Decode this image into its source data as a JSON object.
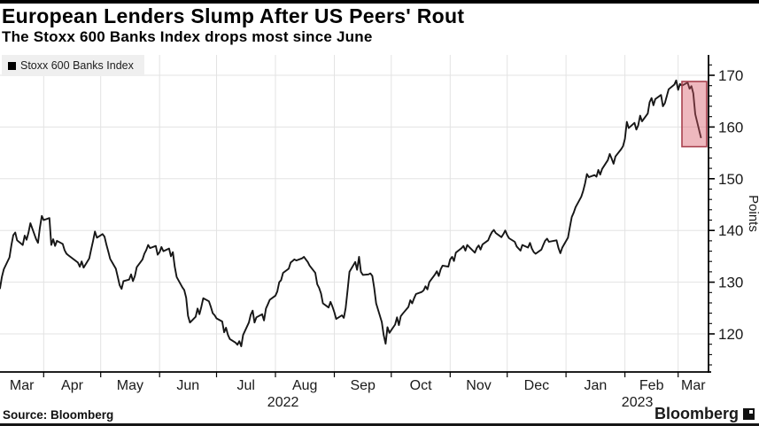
{
  "page": {
    "title": "European Lenders Slump After US Peers' Rout",
    "subtitle": "The Stoxx 600 Banks Index drops most since June",
    "source": "Source: Bloomberg",
    "brand": "Bloomberg",
    "legend": {
      "label": "Stoxx 600 Banks Index",
      "swatch_color": "#000000"
    }
  },
  "chart_data": {
    "type": "line",
    "title": "European Lenders Slump After US Peers' Rout",
    "subtitle": "The Stoxx 600 Banks Index drops most since June",
    "series_name": "Stoxx 600 Banks Index",
    "ylabel": "Points",
    "y_ticks": [
      120,
      130,
      140,
      150,
      160,
      170
    ],
    "y_minor_tick_step": 2,
    "y_minor_range": [
      114,
      172
    ],
    "ylim": [
      112.5,
      174
    ],
    "x_domain": [
      "2022-03-09",
      "2023-03-17"
    ],
    "x_month_labels": [
      "Mar",
      "Apr",
      "May",
      "Jun",
      "Jul",
      "Aug",
      "Sep",
      "Oct",
      "Nov",
      "Dec",
      "Jan",
      "Feb",
      "Mar"
    ],
    "year_labels": [
      "2022",
      "2023"
    ],
    "grid": true,
    "grid_color": "#e3e3e3",
    "axis_color": "#000000",
    "tick_label_color": "#1a1a1a",
    "line_color": "#161616",
    "legend_position": "top-left",
    "highlight_box": {
      "x": [
        "2023-03-03",
        "2023-03-16"
      ],
      "y": [
        156.2,
        168.8
      ],
      "fill": "#d65564",
      "fill_opacity": 0.42,
      "stroke": "#a8414e"
    },
    "points": [
      [
        "2022-03-09",
        128.8
      ],
      [
        "2022-03-10",
        131.0
      ],
      [
        "2022-03-11",
        132.5
      ],
      [
        "2022-03-14",
        134.8
      ],
      [
        "2022-03-15",
        137.2
      ],
      [
        "2022-03-16",
        139.1
      ],
      [
        "2022-03-17",
        139.6
      ],
      [
        "2022-03-18",
        138.1
      ],
      [
        "2022-03-21",
        137.2
      ],
      [
        "2022-03-22",
        139.0
      ],
      [
        "2022-03-23",
        138.2
      ],
      [
        "2022-03-24",
        139.6
      ],
      [
        "2022-03-25",
        141.4
      ],
      [
        "2022-03-28",
        138.3
      ],
      [
        "2022-03-29",
        137.6
      ],
      [
        "2022-03-30",
        140.5
      ],
      [
        "2022-03-31",
        142.8
      ],
      [
        "2022-04-01",
        142.0
      ],
      [
        "2022-04-04",
        142.4
      ],
      [
        "2022-04-05",
        137.2
      ],
      [
        "2022-04-06",
        138.3
      ],
      [
        "2022-04-07",
        137.0
      ],
      [
        "2022-04-08",
        138.0
      ],
      [
        "2022-04-11",
        137.4
      ],
      [
        "2022-04-12",
        136.2
      ],
      [
        "2022-04-13",
        135.5
      ],
      [
        "2022-04-14",
        135.2
      ],
      [
        "2022-04-19",
        133.8
      ],
      [
        "2022-04-20",
        133.0
      ],
      [
        "2022-04-21",
        134.0
      ],
      [
        "2022-04-22",
        132.8
      ],
      [
        "2022-04-25",
        134.6
      ],
      [
        "2022-04-26",
        136.3
      ],
      [
        "2022-04-27",
        138.0
      ],
      [
        "2022-04-28",
        139.8
      ],
      [
        "2022-04-29",
        138.6
      ],
      [
        "2022-05-02",
        139.3
      ],
      [
        "2022-05-03",
        138.8
      ],
      [
        "2022-05-04",
        137.3
      ],
      [
        "2022-05-05",
        135.9
      ],
      [
        "2022-05-06",
        134.5
      ],
      [
        "2022-05-09",
        132.6
      ],
      [
        "2022-05-10",
        131.0
      ],
      [
        "2022-05-11",
        129.4
      ],
      [
        "2022-05-12",
        128.7
      ],
      [
        "2022-05-13",
        130.2
      ],
      [
        "2022-05-16",
        130.5
      ],
      [
        "2022-05-17",
        131.5
      ],
      [
        "2022-05-18",
        130.2
      ],
      [
        "2022-05-19",
        131.2
      ],
      [
        "2022-05-20",
        132.9
      ],
      [
        "2022-05-23",
        134.4
      ],
      [
        "2022-05-24",
        135.5
      ],
      [
        "2022-05-25",
        136.2
      ],
      [
        "2022-05-26",
        137.2
      ],
      [
        "2022-05-27",
        136.6
      ],
      [
        "2022-05-30",
        137.0
      ],
      [
        "2022-05-31",
        135.3
      ],
      [
        "2022-06-01",
        135.8
      ],
      [
        "2022-06-02",
        136.8
      ],
      [
        "2022-06-03",
        136.0
      ],
      [
        "2022-06-06",
        136.5
      ],
      [
        "2022-06-07",
        135.0
      ],
      [
        "2022-06-08",
        135.8
      ],
      [
        "2022-06-09",
        133.0
      ],
      [
        "2022-06-10",
        131.0
      ],
      [
        "2022-06-13",
        129.0
      ],
      [
        "2022-06-14",
        128.5
      ],
      [
        "2022-06-15",
        127.0
      ],
      [
        "2022-06-16",
        123.5
      ],
      [
        "2022-06-17",
        122.2
      ],
      [
        "2022-06-20",
        123.3
      ],
      [
        "2022-06-21",
        124.9
      ],
      [
        "2022-06-22",
        123.8
      ],
      [
        "2022-06-23",
        125.2
      ],
      [
        "2022-06-24",
        126.9
      ],
      [
        "2022-06-27",
        126.3
      ],
      [
        "2022-06-28",
        125.2
      ],
      [
        "2022-06-29",
        124.0
      ],
      [
        "2022-06-30",
        123.6
      ],
      [
        "2022-07-01",
        123.0
      ],
      [
        "2022-07-04",
        122.4
      ],
      [
        "2022-07-05",
        120.3
      ],
      [
        "2022-07-06",
        121.2
      ],
      [
        "2022-07-07",
        119.8
      ],
      [
        "2022-07-08",
        119.0
      ],
      [
        "2022-07-11",
        118.3
      ],
      [
        "2022-07-12",
        117.9
      ],
      [
        "2022-07-13",
        118.6
      ],
      [
        "2022-07-14",
        117.6
      ],
      [
        "2022-07-15",
        119.8
      ],
      [
        "2022-07-18",
        122.2
      ],
      [
        "2022-07-19",
        123.7
      ],
      [
        "2022-07-20",
        124.5
      ],
      [
        "2022-07-21",
        122.2
      ],
      [
        "2022-07-22",
        123.2
      ],
      [
        "2022-07-25",
        123.8
      ],
      [
        "2022-07-26",
        122.6
      ],
      [
        "2022-07-27",
        124.9
      ],
      [
        "2022-07-28",
        125.7
      ],
      [
        "2022-07-29",
        126.6
      ],
      [
        "2022-08-01",
        127.4
      ],
      [
        "2022-08-02",
        128.2
      ],
      [
        "2022-08-03",
        130.0
      ],
      [
        "2022-08-04",
        130.4
      ],
      [
        "2022-08-05",
        131.8
      ],
      [
        "2022-08-08",
        132.6
      ],
      [
        "2022-08-09",
        133.8
      ],
      [
        "2022-08-10",
        134.1
      ],
      [
        "2022-08-11",
        134.4
      ],
      [
        "2022-08-12",
        134.2
      ],
      [
        "2022-08-15",
        134.6
      ],
      [
        "2022-08-16",
        134.9
      ],
      [
        "2022-08-17",
        134.4
      ],
      [
        "2022-08-18",
        133.9
      ],
      [
        "2022-08-19",
        133.2
      ],
      [
        "2022-08-22",
        131.8
      ],
      [
        "2022-08-23",
        129.6
      ],
      [
        "2022-08-24",
        128.9
      ],
      [
        "2022-08-25",
        127.8
      ],
      [
        "2022-08-26",
        125.9
      ],
      [
        "2022-08-29",
        125.1
      ],
      [
        "2022-08-30",
        126.2
      ],
      [
        "2022-08-31",
        125.3
      ],
      [
        "2022-09-01",
        124.2
      ],
      [
        "2022-09-02",
        122.9
      ],
      [
        "2022-09-05",
        123.6
      ],
      [
        "2022-09-06",
        123.1
      ],
      [
        "2022-09-07",
        125.0
      ],
      [
        "2022-09-08",
        128.5
      ],
      [
        "2022-09-09",
        132.0
      ],
      [
        "2022-09-12",
        133.9
      ],
      [
        "2022-09-13",
        132.4
      ],
      [
        "2022-09-14",
        134.9
      ],
      [
        "2022-09-15",
        132.0
      ],
      [
        "2022-09-16",
        131.4
      ],
      [
        "2022-09-19",
        131.5
      ],
      [
        "2022-09-20",
        131.7
      ],
      [
        "2022-09-21",
        131.2
      ],
      [
        "2022-09-22",
        128.9
      ],
      [
        "2022-09-23",
        125.9
      ],
      [
        "2022-09-26",
        122.3
      ],
      [
        "2022-09-27",
        119.8
      ],
      [
        "2022-09-28",
        118.1
      ],
      [
        "2022-09-29",
        121.3
      ],
      [
        "2022-09-30",
        120.2
      ],
      [
        "2022-10-03",
        121.8
      ],
      [
        "2022-10-04",
        123.2
      ],
      [
        "2022-10-05",
        121.7
      ],
      [
        "2022-10-06",
        123.4
      ],
      [
        "2022-10-07",
        123.9
      ],
      [
        "2022-10-10",
        125.2
      ],
      [
        "2022-10-11",
        126.5
      ],
      [
        "2022-10-12",
        125.9
      ],
      [
        "2022-10-13",
        126.9
      ],
      [
        "2022-10-14",
        127.7
      ],
      [
        "2022-10-17",
        128.1
      ],
      [
        "2022-10-18",
        128.4
      ],
      [
        "2022-10-19",
        129.2
      ],
      [
        "2022-10-20",
        128.6
      ],
      [
        "2022-10-21",
        130.0
      ],
      [
        "2022-10-24",
        131.5
      ],
      [
        "2022-10-25",
        132.1
      ],
      [
        "2022-10-26",
        131.2
      ],
      [
        "2022-10-27",
        132.5
      ],
      [
        "2022-10-28",
        133.2
      ],
      [
        "2022-10-31",
        133.0
      ],
      [
        "2022-11-01",
        134.4
      ],
      [
        "2022-11-02",
        134.9
      ],
      [
        "2022-11-03",
        134.1
      ],
      [
        "2022-11-04",
        135.7
      ],
      [
        "2022-11-07",
        136.6
      ],
      [
        "2022-11-08",
        137.0
      ],
      [
        "2022-11-09",
        136.1
      ],
      [
        "2022-11-10",
        137.2
      ],
      [
        "2022-11-11",
        136.8
      ],
      [
        "2022-11-14",
        135.7
      ],
      [
        "2022-11-15",
        136.6
      ],
      [
        "2022-11-16",
        137.1
      ],
      [
        "2022-11-17",
        136.3
      ],
      [
        "2022-11-18",
        137.3
      ],
      [
        "2022-11-21",
        138.1
      ],
      [
        "2022-11-22",
        139.0
      ],
      [
        "2022-11-23",
        139.7
      ],
      [
        "2022-11-24",
        140.1
      ],
      [
        "2022-11-25",
        139.5
      ],
      [
        "2022-11-28",
        138.7
      ],
      [
        "2022-11-29",
        139.3
      ],
      [
        "2022-11-30",
        140.0
      ],
      [
        "2022-12-01",
        139.1
      ],
      [
        "2022-12-02",
        138.5
      ],
      [
        "2022-12-05",
        137.8
      ],
      [
        "2022-12-06",
        136.9
      ],
      [
        "2022-12-07",
        136.5
      ],
      [
        "2022-12-08",
        136.1
      ],
      [
        "2022-12-09",
        137.2
      ],
      [
        "2022-12-12",
        136.7
      ],
      [
        "2022-12-13",
        137.6
      ],
      [
        "2022-12-14",
        136.5
      ],
      [
        "2022-12-15",
        135.8
      ],
      [
        "2022-12-16",
        135.5
      ],
      [
        "2022-12-19",
        136.3
      ],
      [
        "2022-12-20",
        137.2
      ],
      [
        "2022-12-21",
        138.0
      ],
      [
        "2022-12-22",
        138.4
      ],
      [
        "2022-12-23",
        137.8
      ],
      [
        "2022-12-27",
        138.1
      ],
      [
        "2022-12-28",
        136.6
      ],
      [
        "2022-12-29",
        135.6
      ],
      [
        "2022-12-30",
        136.7
      ],
      [
        "2023-01-02",
        138.6
      ],
      [
        "2023-01-03",
        140.6
      ],
      [
        "2023-01-04",
        142.6
      ],
      [
        "2023-01-05",
        143.4
      ],
      [
        "2023-01-06",
        144.5
      ],
      [
        "2023-01-09",
        146.5
      ],
      [
        "2023-01-10",
        147.6
      ],
      [
        "2023-01-11",
        149.1
      ],
      [
        "2023-01-12",
        150.9
      ],
      [
        "2023-01-13",
        150.3
      ],
      [
        "2023-01-16",
        150.7
      ],
      [
        "2023-01-17",
        150.4
      ],
      [
        "2023-01-18",
        151.7
      ],
      [
        "2023-01-19",
        150.8
      ],
      [
        "2023-01-20",
        151.9
      ],
      [
        "2023-01-23",
        153.6
      ],
      [
        "2023-01-24",
        154.8
      ],
      [
        "2023-01-25",
        153.9
      ],
      [
        "2023-01-26",
        152.9
      ],
      [
        "2023-01-27",
        154.3
      ],
      [
        "2023-01-30",
        155.7
      ],
      [
        "2023-01-31",
        156.3
      ],
      [
        "2023-02-01",
        157.7
      ],
      [
        "2023-02-02",
        161.0
      ],
      [
        "2023-02-03",
        159.8
      ],
      [
        "2023-02-06",
        160.8
      ],
      [
        "2023-02-07",
        159.5
      ],
      [
        "2023-02-08",
        160.3
      ],
      [
        "2023-02-09",
        162.2
      ],
      [
        "2023-02-10",
        161.1
      ],
      [
        "2023-02-13",
        162.6
      ],
      [
        "2023-02-14",
        164.8
      ],
      [
        "2023-02-15",
        165.6
      ],
      [
        "2023-02-16",
        164.2
      ],
      [
        "2023-02-17",
        165.4
      ],
      [
        "2023-02-20",
        166.2
      ],
      [
        "2023-02-21",
        164.0
      ],
      [
        "2023-02-22",
        164.6
      ],
      [
        "2023-02-23",
        165.9
      ],
      [
        "2023-02-24",
        167.3
      ],
      [
        "2023-02-27",
        168.2
      ],
      [
        "2023-02-28",
        169.0
      ],
      [
        "2023-03-01",
        167.2
      ],
      [
        "2023-03-02",
        168.3
      ],
      [
        "2023-03-03",
        168.0
      ],
      [
        "2023-03-06",
        168.6
      ],
      [
        "2023-03-07",
        167.4
      ],
      [
        "2023-03-08",
        167.9
      ],
      [
        "2023-03-09",
        166.5
      ],
      [
        "2023-03-10",
        162.5
      ],
      [
        "2023-03-13",
        158.0
      ]
    ]
  }
}
